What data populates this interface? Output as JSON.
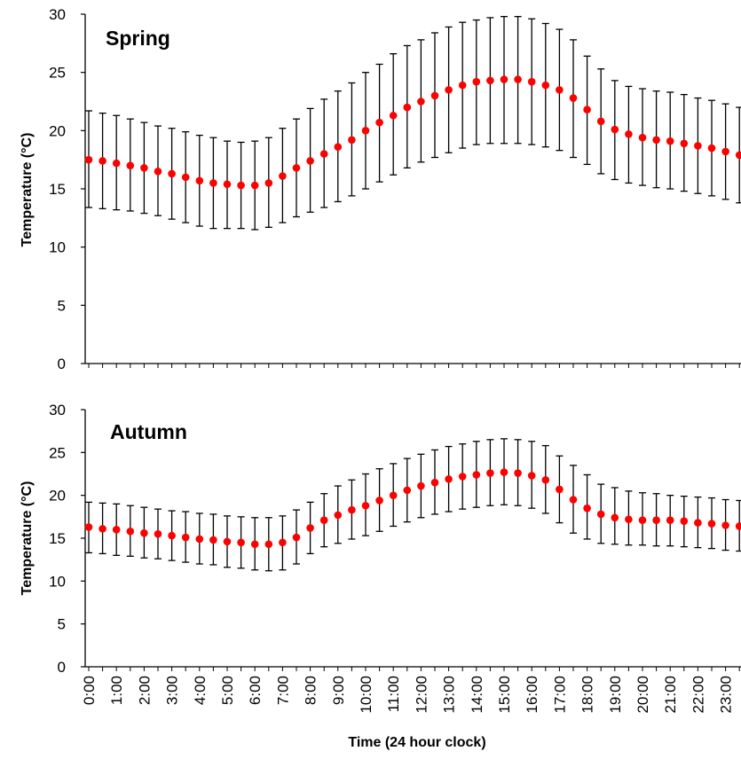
{
  "chart_data": [
    {
      "type": "scatter",
      "title": "Spring",
      "xlabel": "",
      "ylabel": "Temperature (°C)",
      "ylim": [
        0,
        30
      ],
      "yticks": [
        "0",
        "5",
        "10",
        "15",
        "20",
        "25",
        "30"
      ],
      "x_tick_labels_shown": false,
      "grid": false,
      "legend": "none",
      "error_bars": true,
      "marker_color": "#ff0000",
      "error_bar_color": "#000000",
      "x": [
        "0:00",
        "0:30",
        "1:00",
        "1:30",
        "2:00",
        "2:30",
        "3:00",
        "3:30",
        "4:00",
        "4:30",
        "5:00",
        "5:30",
        "6:00",
        "6:30",
        "7:00",
        "7:30",
        "8:00",
        "8:30",
        "9:00",
        "9:30",
        "10:00",
        "10:30",
        "11:00",
        "11:30",
        "12:00",
        "12:30",
        "13:00",
        "13:30",
        "14:00",
        "14:30",
        "15:00",
        "15:30",
        "16:00",
        "16:30",
        "17:00",
        "17:30",
        "18:00",
        "18:30",
        "19:00",
        "19:30",
        "20:00",
        "20:30",
        "21:00",
        "21:30",
        "22:00",
        "22:30",
        "23:00",
        "23:30"
      ],
      "values": [
        17.5,
        17.4,
        17.2,
        17.0,
        16.8,
        16.5,
        16.3,
        16.0,
        15.7,
        15.5,
        15.4,
        15.3,
        15.3,
        15.5,
        16.1,
        16.8,
        17.4,
        18.0,
        18.6,
        19.2,
        20.0,
        20.7,
        21.3,
        22.0,
        22.5,
        23.0,
        23.5,
        23.9,
        24.2,
        24.3,
        24.4,
        24.4,
        24.2,
        23.9,
        23.5,
        22.8,
        21.8,
        20.8,
        20.1,
        19.7,
        19.4,
        19.2,
        19.1,
        18.9,
        18.7,
        18.5,
        18.2,
        17.9
      ],
      "err_upper": [
        21.7,
        21.5,
        21.3,
        21.0,
        20.7,
        20.4,
        20.2,
        19.9,
        19.6,
        19.4,
        19.1,
        19.0,
        19.1,
        19.4,
        20.2,
        21.0,
        21.9,
        22.7,
        23.4,
        24.1,
        25.0,
        25.7,
        26.6,
        27.3,
        27.8,
        28.4,
        28.9,
        29.3,
        29.5,
        29.7,
        29.8,
        29.8,
        29.6,
        29.2,
        28.7,
        27.8,
        26.4,
        25.3,
        24.3,
        23.8,
        23.6,
        23.4,
        23.3,
        23.1,
        22.8,
        22.6,
        22.3,
        22.0
      ],
      "err_lower": [
        13.4,
        13.3,
        13.2,
        13.1,
        12.9,
        12.7,
        12.4,
        12.1,
        11.8,
        11.6,
        11.6,
        11.6,
        11.5,
        11.7,
        12.1,
        12.6,
        13.0,
        13.4,
        13.9,
        14.4,
        15.0,
        15.6,
        16.2,
        16.8,
        17.3,
        17.7,
        18.1,
        18.5,
        18.8,
        18.9,
        18.9,
        18.9,
        18.8,
        18.6,
        18.3,
        17.7,
        17.1,
        16.3,
        15.8,
        15.5,
        15.3,
        15.1,
        15.0,
        14.8,
        14.6,
        14.4,
        14.1,
        13.8
      ]
    },
    {
      "type": "scatter",
      "title": "Autumn",
      "xlabel": "Time (24 hour clock)",
      "ylabel": "Temperature (°C)",
      "ylim": [
        0,
        30
      ],
      "yticks": [
        "0",
        "5",
        "10",
        "15",
        "20",
        "25",
        "30"
      ],
      "x_tick_labels": [
        "0:00",
        "1:00",
        "2:00",
        "3:00",
        "4:00",
        "5:00",
        "6:00",
        "7:00",
        "8:00",
        "9:00",
        "10:00",
        "11:00",
        "12:00",
        "13:00",
        "14:00",
        "15:00",
        "16:00",
        "17:00",
        "18:00",
        "19:00",
        "20:00",
        "21:00",
        "22:00",
        "23:00"
      ],
      "grid": false,
      "legend": "none",
      "error_bars": true,
      "marker_color": "#ff0000",
      "error_bar_color": "#000000",
      "x": [
        "0:00",
        "0:30",
        "1:00",
        "1:30",
        "2:00",
        "2:30",
        "3:00",
        "3:30",
        "4:00",
        "4:30",
        "5:00",
        "5:30",
        "6:00",
        "6:30",
        "7:00",
        "7:30",
        "8:00",
        "8:30",
        "9:00",
        "9:30",
        "10:00",
        "10:30",
        "11:00",
        "11:30",
        "12:00",
        "12:30",
        "13:00",
        "13:30",
        "14:00",
        "14:30",
        "15:00",
        "15:30",
        "16:00",
        "16:30",
        "17:00",
        "17:30",
        "18:00",
        "18:30",
        "19:00",
        "19:30",
        "20:00",
        "20:30",
        "21:00",
        "21:30",
        "22:00",
        "22:30",
        "23:00",
        "23:30"
      ],
      "values": [
        16.3,
        16.1,
        16.0,
        15.8,
        15.6,
        15.5,
        15.3,
        15.1,
        14.9,
        14.8,
        14.6,
        14.5,
        14.3,
        14.3,
        14.5,
        15.1,
        16.2,
        17.1,
        17.7,
        18.3,
        18.8,
        19.4,
        20.0,
        20.6,
        21.1,
        21.5,
        21.9,
        22.2,
        22.4,
        22.6,
        22.7,
        22.6,
        22.3,
        21.8,
        20.7,
        19.5,
        18.5,
        17.8,
        17.4,
        17.2,
        17.1,
        17.1,
        17.1,
        17.0,
        16.8,
        16.7,
        16.5,
        16.4
      ],
      "err_upper": [
        19.2,
        19.1,
        19.0,
        18.8,
        18.6,
        18.4,
        18.2,
        18.1,
        17.9,
        17.8,
        17.6,
        17.5,
        17.4,
        17.4,
        17.6,
        18.3,
        19.2,
        20.2,
        21.1,
        21.8,
        22.5,
        23.1,
        23.7,
        24.3,
        24.8,
        25.3,
        25.7,
        26.0,
        26.3,
        26.5,
        26.6,
        26.5,
        26.3,
        25.8,
        24.6,
        23.5,
        22.4,
        21.3,
        20.9,
        20.5,
        20.3,
        20.2,
        20.0,
        19.9,
        19.8,
        19.7,
        19.5,
        19.4
      ],
      "err_lower": [
        13.3,
        13.2,
        13.0,
        12.9,
        12.7,
        12.6,
        12.4,
        12.2,
        12.0,
        11.9,
        11.6,
        11.5,
        11.3,
        11.2,
        11.3,
        12.0,
        13.2,
        14.0,
        14.4,
        14.9,
        15.3,
        15.8,
        16.4,
        16.9,
        17.4,
        17.8,
        18.1,
        18.4,
        18.6,
        18.8,
        18.9,
        18.8,
        18.5,
        17.9,
        16.8,
        15.6,
        14.9,
        14.4,
        14.3,
        14.2,
        14.2,
        14.1,
        14.1,
        14.0,
        13.9,
        13.8,
        13.6,
        13.5
      ]
    }
  ]
}
